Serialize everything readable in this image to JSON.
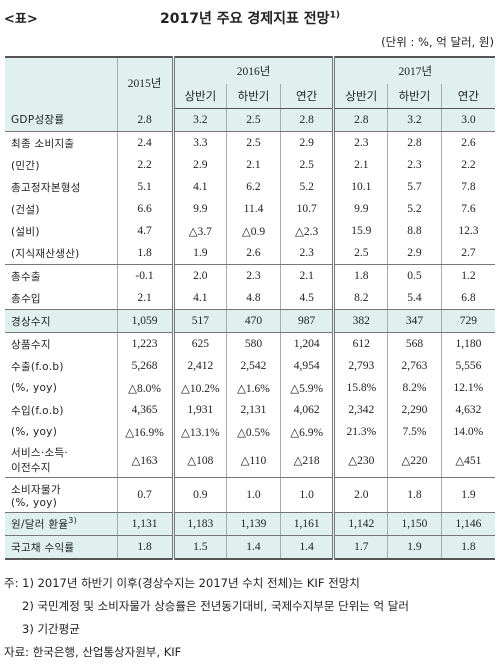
{
  "header": {
    "tag": "<표>",
    "title": "2017년 주요 경제지표 전망",
    "title_note": "1)",
    "unit": "(단위 : %, 억 달러, 원)"
  },
  "table": {
    "years": [
      "2015년",
      "2016년",
      "2017년"
    ],
    "halves": [
      "상반기",
      "하반기",
      "연간",
      "상반기",
      "하반기",
      "연간"
    ],
    "rows": [
      {
        "label": "GDP성장률",
        "cells": [
          "2.8",
          "3.2",
          "2.5",
          "2.8",
          "2.8",
          "3.2",
          "3.0"
        ]
      },
      {
        "label": "최종 소비지출",
        "cells": [
          "2.4",
          "3.3",
          "2.5",
          "2.9",
          "2.3",
          "2.8",
          "2.6"
        ]
      },
      {
        "label": "(민간)",
        "cells": [
          "2.2",
          "2.9",
          "2.1",
          "2.5",
          "2.1",
          "2.3",
          "2.2"
        ]
      },
      {
        "label": "총고정자본형성",
        "cells": [
          "5.1",
          "4.1",
          "6.2",
          "5.2",
          "10.1",
          "5.7",
          "7.8"
        ]
      },
      {
        "label": "(건설)",
        "cells": [
          "6.6",
          "9.9",
          "11.4",
          "10.7",
          "9.9",
          "5.2",
          "7.6"
        ]
      },
      {
        "label": "(설비)",
        "cells": [
          "4.7",
          "△3.7",
          "△0.9",
          "△2.3",
          "15.9",
          "8.8",
          "12.3"
        ]
      },
      {
        "label": "(지식재산생산)",
        "cells": [
          "1.8",
          "1.9",
          "2.6",
          "2.3",
          "2.5",
          "2.9",
          "2.7"
        ]
      },
      {
        "label": "총수출",
        "cells": [
          "-0.1",
          "2.0",
          "2.3",
          "2.1",
          "1.8",
          "0.5",
          "1.2"
        ]
      },
      {
        "label": "총수입",
        "cells": [
          "2.1",
          "4.1",
          "4.8",
          "4.5",
          "8.2",
          "5.4",
          "6.8"
        ]
      },
      {
        "label": "경상수지",
        "cells": [
          "1,059",
          "517",
          "470",
          "987",
          "382",
          "347",
          "729"
        ]
      },
      {
        "label": "상품수지",
        "cells": [
          "1,223",
          "625",
          "580",
          "1,204",
          "612",
          "568",
          "1,180"
        ]
      },
      {
        "label": "수출(f.o.b)",
        "cells": [
          "5,268",
          "2,412",
          "2,542",
          "4,954",
          "2,793",
          "2,763",
          "5,556"
        ]
      },
      {
        "label": "(%, yoy)",
        "cells": [
          "△8.0%",
          "△10.2%",
          "△1.6%",
          "△5.9%",
          "15.8%",
          "8.2%",
          "12.1%"
        ]
      },
      {
        "label": "수입(f.o.b)",
        "cells": [
          "4,365",
          "1,931",
          "2,131",
          "4,062",
          "2,342",
          "2,290",
          "4,632"
        ]
      },
      {
        "label": "(%, yoy)",
        "cells": [
          "△16.9%",
          "△13.1%",
          "△0.5%",
          "△6.9%",
          "21.3%",
          "7.5%",
          "14.0%"
        ]
      },
      {
        "label": "서비스·소득·\n이전수지",
        "cells": [
          "△163",
          "△108",
          "△110",
          "△218",
          "△230",
          "△220",
          "△451"
        ]
      },
      {
        "label": "소비자물가\n(%, yoy)",
        "cells": [
          "0.7",
          "0.9",
          "1.0",
          "1.0",
          "2.0",
          "1.8",
          "1.9"
        ]
      },
      {
        "label": "원/달러 환율",
        "note": "3)",
        "cells": [
          "1,131",
          "1,183",
          "1,139",
          "1,161",
          "1,142",
          "1,150",
          "1,146"
        ]
      },
      {
        "label": "국고채 수익률",
        "cells": [
          "1.8",
          "1.5",
          "1.4",
          "1.4",
          "1.7",
          "1.9",
          "1.8"
        ]
      }
    ]
  },
  "notes": {
    "lead": "주:",
    "items": [
      "1) 2017년 하반기 이후(경상수지는 2017년 수치 전체)는 KIF 전망치",
      "2) 국민계정 및 소비자물가 상승률은 전년동기대비, 국제수지부문 단위는 억 달러",
      "3) 기간평균"
    ],
    "source": "자료: 한국은행, 산업통상자원부, KIF"
  }
}
